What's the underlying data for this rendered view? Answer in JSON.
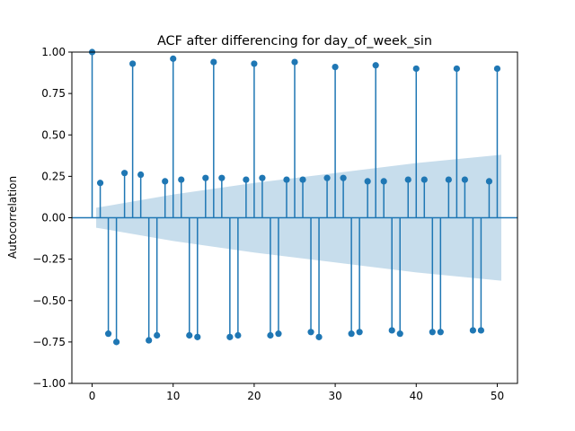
{
  "chart_data": {
    "type": "stem",
    "title": "ACF after differencing for day_of_week_sin",
    "xlabel": "",
    "ylabel": "Autocorrelation",
    "xlim": [
      -2.5,
      52.5
    ],
    "ylim": [
      -1.0,
      1.0
    ],
    "x_ticks": [
      0,
      10,
      20,
      30,
      40,
      50
    ],
    "x_tick_labels": [
      "0",
      "10",
      "20",
      "30",
      "40",
      "50"
    ],
    "y_ticks": [
      -1.0,
      -0.75,
      -0.5,
      -0.25,
      0.0,
      0.25,
      0.5,
      0.75,
      1.0
    ],
    "y_tick_labels": [
      "−1.00",
      "−0.75",
      "−0.50",
      "−0.25",
      "0.00",
      "0.25",
      "0.50",
      "0.75",
      "1.00"
    ],
    "grid": false,
    "colors": {
      "stem": "#1f77b4",
      "confidence_band": "#1f77b4"
    },
    "lags": [
      0,
      1,
      2,
      3,
      4,
      5,
      6,
      7,
      8,
      9,
      10,
      11,
      12,
      13,
      14,
      15,
      16,
      17,
      18,
      19,
      20,
      21,
      22,
      23,
      24,
      25,
      26,
      27,
      28,
      29,
      30,
      31,
      32,
      33,
      34,
      35,
      36,
      37,
      38,
      39,
      40,
      41,
      42,
      43,
      44,
      45,
      46,
      47,
      48,
      49,
      50
    ],
    "values": [
      1.0,
      0.21,
      -0.7,
      -0.75,
      0.27,
      0.93,
      0.26,
      -0.74,
      -0.71,
      0.22,
      0.96,
      0.23,
      -0.71,
      -0.72,
      0.24,
      0.94,
      0.24,
      -0.72,
      -0.71,
      0.23,
      0.93,
      0.24,
      -0.71,
      -0.7,
      0.23,
      0.94,
      0.23,
      -0.69,
      -0.72,
      0.24,
      0.91,
      0.24,
      -0.7,
      -0.69,
      0.22,
      0.92,
      0.22,
      -0.68,
      -0.7,
      0.23,
      0.9,
      0.23,
      -0.69,
      -0.69,
      0.23,
      0.9,
      0.23,
      -0.68,
      -0.68,
      0.22,
      0.9
    ],
    "confidence_band": {
      "lags": [
        0.5,
        10,
        20,
        30,
        40,
        50.5
      ],
      "upper": [
        0.06,
        0.14,
        0.21,
        0.27,
        0.33,
        0.38
      ],
      "lower": [
        -0.06,
        -0.14,
        -0.21,
        -0.27,
        -0.33,
        -0.38
      ]
    }
  }
}
